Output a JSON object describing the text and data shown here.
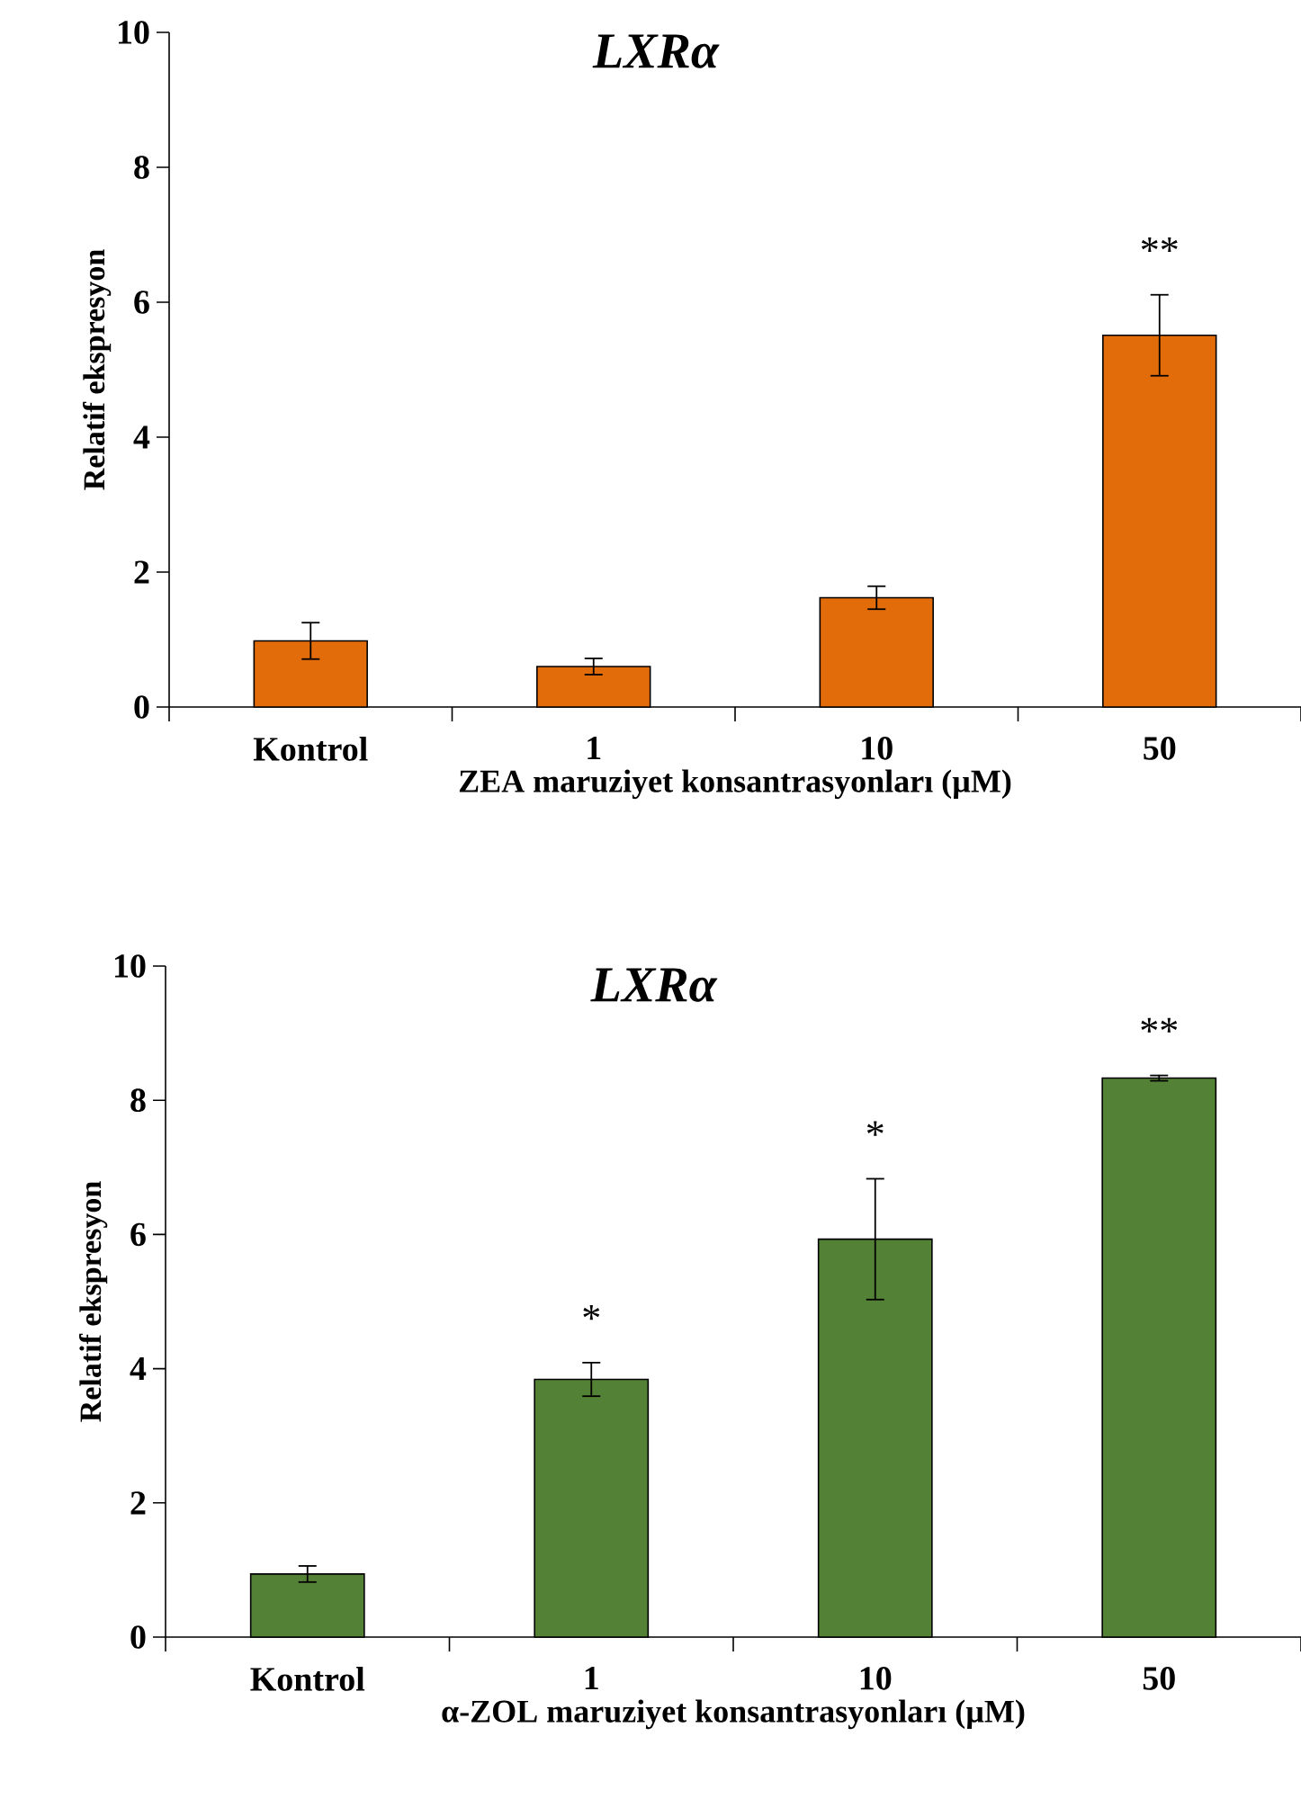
{
  "chart_data": [
    {
      "type": "bar",
      "title": "LXRα",
      "xlabel": "ZEA maruziyet konsantrasyonları (µM)",
      "ylabel": "Relatif ekspresyon",
      "categories": [
        "Kontrol",
        "1",
        "10",
        "50"
      ],
      "values": [
        0.98,
        0.6,
        1.62,
        5.51
      ],
      "errors": [
        0.27,
        0.12,
        0.17,
        0.6
      ],
      "color": "#e36c0a",
      "ylim": [
        0,
        10
      ],
      "yticks": [
        0,
        2,
        4,
        6,
        8,
        10
      ],
      "annotations": [
        "**"
      ]
    },
    {
      "type": "bar",
      "title": "LXRα",
      "xlabel": "α-ZOL maruziyet konsantrasyonları (µM)",
      "ylabel": "Relatif ekspresyon",
      "categories": [
        "Kontrol",
        "1",
        "10",
        "50"
      ],
      "values": [
        0.94,
        3.84,
        5.93,
        8.33
      ],
      "errors": [
        0.12,
        0.25,
        0.9,
        0.04
      ],
      "color": "#538135",
      "ylim": [
        0,
        10
      ],
      "yticks": [
        0,
        2,
        4,
        6,
        8,
        10
      ],
      "annotations": [
        "*",
        "*",
        "**"
      ]
    }
  ]
}
